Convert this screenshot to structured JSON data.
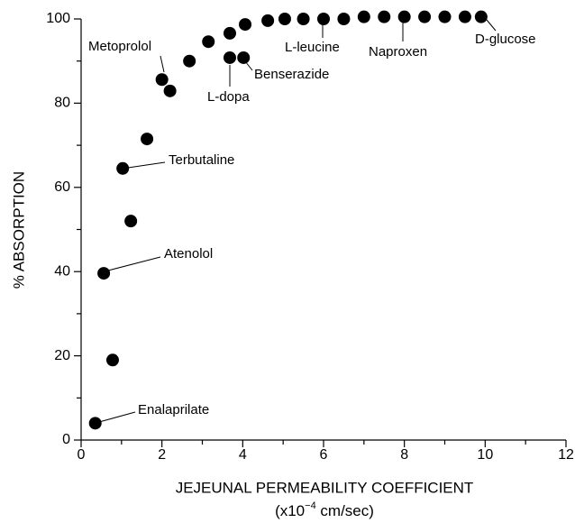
{
  "chart_data": {
    "type": "scatter",
    "xlabel": "JEJEUNAL PERMEABILITY COEFFICIENT",
    "xlabel_units": [
      "(x10",
      "−4",
      " cm/sec)"
    ],
    "ylabel": "% ABSORPTION",
    "x": [
      0.35,
      0.78,
      0.56,
      1.23,
      1.03,
      1.63,
      2.0,
      2.2,
      2.68,
      3.15,
      3.68,
      3.68,
      4.02,
      4.06,
      4.62,
      5.04,
      5.5,
      6.0,
      6.5,
      7.0,
      7.5,
      8.0,
      8.5,
      9.0,
      9.5,
      9.9
    ],
    "values": [
      4,
      19,
      39.6,
      52,
      64.5,
      71.5,
      85.6,
      82.9,
      90,
      94.6,
      96.6,
      90.8,
      90.8,
      98.7,
      99.6,
      100,
      100,
      100,
      100,
      100.5,
      100.5,
      100.5,
      100.5,
      100.5,
      100.5,
      100.5
    ],
    "color": "#000000",
    "annotations": [
      "Enalaprilate",
      "Atenolol",
      "Terbutaline",
      "Metoprolol",
      "L-dopa",
      "Benserazide",
      "L-leucine",
      "Naproxen",
      "D-glucose"
    ],
    "xlim": [
      0,
      12
    ],
    "ylim": [
      0,
      100
    ],
    "xticks": [
      0,
      2,
      4,
      6,
      8,
      10,
      12
    ],
    "yticks": [
      0,
      20,
      40,
      60,
      80,
      100
    ],
    "xminor_ticks": [
      1,
      3,
      5,
      7,
      9,
      11
    ],
    "yminor_ticks": [
      10,
      30,
      50,
      70,
      90
    ]
  }
}
